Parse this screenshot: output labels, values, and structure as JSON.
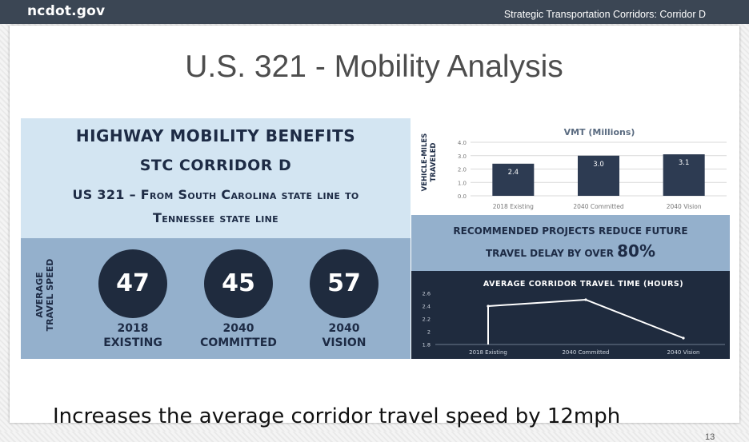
{
  "header": {
    "logo": "ncdot.gov",
    "subtitle": "Strategic Transportation Corridors: Corridor D"
  },
  "slide": {
    "title": "U.S. 321 - Mobility Analysis",
    "caption": "Increases the average corridor travel speed by 12mph",
    "page_number": "13"
  },
  "infographic": {
    "heading_1": "HIGHWAY MOBILITY BENEFITS",
    "heading_2": "STC CORRIDOR D",
    "heading_3": "US 321 – From South Carolina state line to",
    "heading_4": "Tennessee state line",
    "speed_axis_label_1": "AVERAGE",
    "speed_axis_label_2": "TRAVEL SPEED",
    "speeds": [
      {
        "value": "47",
        "year": "2018",
        "scenario": "EXISTING"
      },
      {
        "value": "45",
        "year": "2040",
        "scenario": "COMMITTED"
      },
      {
        "value": "57",
        "year": "2040",
        "scenario": "VISION"
      }
    ],
    "banner_line_1": "RECOMMENDED PROJECTS REDUCE FUTURE",
    "banner_line_2": "TRAVEL DELAY BY OVER",
    "banner_percent": "80%",
    "colors": {
      "light_panel": "#d3e5f2",
      "mid_panel": "#94b0cc",
      "dark_navy": "#1f2b3e"
    }
  },
  "chart_data": [
    {
      "type": "bar",
      "title": "VMT (Millions)",
      "ylabel_1": "VEHICLE-MILES",
      "ylabel_2": "TRAVELED",
      "categories": [
        "2018 Existing",
        "2040 Committed",
        "2040 Vision"
      ],
      "values": [
        2.4,
        3.0,
        3.1
      ],
      "data_labels": [
        "2.4",
        "3.0",
        "3.1"
      ],
      "yticks": [
        "0.0",
        "1.0",
        "2.0",
        "3.0",
        "4.0"
      ],
      "ylim": [
        0,
        4
      ]
    },
    {
      "type": "line",
      "title": "AVERAGE CORRIDOR TRAVEL TIME (HOURS)",
      "categories": [
        "2018 Existing",
        "2040 Committed",
        "2040 Vision"
      ],
      "values": [
        2.4,
        2.5,
        1.9
      ],
      "yticks": [
        "1.8",
        "2",
        "2.2",
        "2.4",
        "2.6"
      ],
      "ylim": [
        1.8,
        2.6
      ]
    }
  ]
}
